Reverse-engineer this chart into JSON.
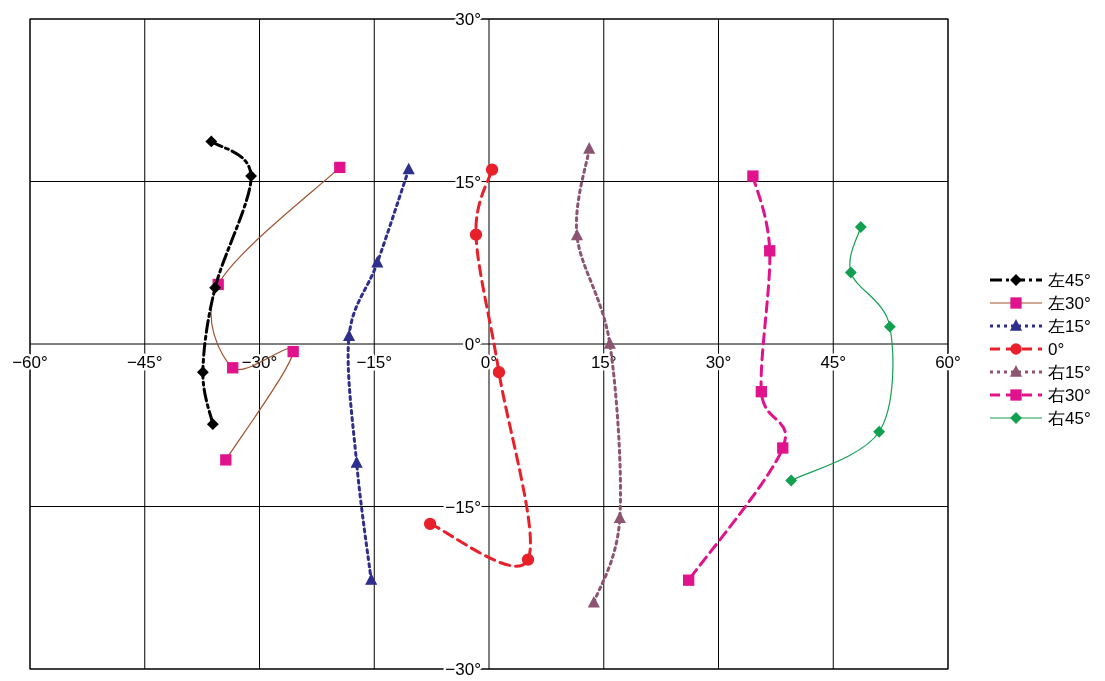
{
  "chart_data": {
    "type": "line",
    "xlim": [
      -60,
      60
    ],
    "ylim": [
      -30,
      30
    ],
    "xticks": [
      {
        "value": -60,
        "label": "−60°"
      },
      {
        "value": -45,
        "label": "−45°"
      },
      {
        "value": -30,
        "label": "−30°"
      },
      {
        "value": -15,
        "label": "−15°"
      },
      {
        "value": 0,
        "label": "0°"
      },
      {
        "value": 15,
        "label": "15°"
      },
      {
        "value": 30,
        "label": "30°"
      },
      {
        "value": 45,
        "label": "45°"
      },
      {
        "value": 60,
        "label": "60°"
      }
    ],
    "yticks": [
      {
        "value": -30,
        "label": "−30°"
      },
      {
        "value": -15,
        "label": "−15°"
      },
      {
        "value": 0,
        "label": "0°"
      },
      {
        "value": 15,
        "label": "15°"
      },
      {
        "value": 30,
        "label": "30°"
      }
    ],
    "grid": true,
    "legend": "right",
    "series": [
      {
        "name": "左45°",
        "color": "#000000",
        "line_style": "dashdot",
        "marker": "diamond",
        "x": [
          -36.3,
          -31.1,
          -35.8,
          -37.4,
          -36.1
        ],
        "values": [
          18.7,
          15.5,
          5.2,
          -2.6,
          -7.4
        ]
      },
      {
        "name": "左30°",
        "color": "#a0522d",
        "colors": [
          "#e0138c",
          "#e0138c",
          "#e0138c",
          "#e0138c",
          "#e0138c"
        ],
        "line_style": "solid",
        "marker": "square",
        "x": [
          -34.4,
          -25.6,
          -33.5,
          -35.4,
          -19.5
        ],
        "values": [
          -10.7,
          -0.7,
          -2.2,
          5.5,
          16.3
        ]
      },
      {
        "name": "左15°",
        "color": "#2e2e8c",
        "line_style": "dotted",
        "marker": "triangle",
        "x": [
          -10.5,
          -14.6,
          -18.3,
          -17.3,
          -15.4
        ],
        "values": [
          16.1,
          7.5,
          0.7,
          -11.0,
          -21.8
        ]
      },
      {
        "name": "0°",
        "color": "#e8202a",
        "line_style": "dashed",
        "marker": "circle",
        "x": [
          -7.7,
          5.1,
          1.3,
          -1.7,
          0.4
        ],
        "values": [
          -16.6,
          -19.9,
          -2.6,
          10.1,
          16.1
        ]
      },
      {
        "name": "右15°",
        "color": "#8c5470",
        "line_style": "dotted",
        "marker": "triangle",
        "x": [
          13.1,
          11.5,
          15.8,
          17.1,
          13.7
        ],
        "values": [
          18.0,
          10.0,
          0.0,
          -16.1,
          -23.9
        ]
      },
      {
        "name": "右30°",
        "color": "#e0138c",
        "line_style": "dashed",
        "marker": "square",
        "x": [
          34.5,
          36.7,
          35.6,
          38.4,
          26.1
        ],
        "values": [
          15.5,
          8.6,
          -4.4,
          -9.6,
          -21.8
        ]
      },
      {
        "name": "右45°",
        "color": "#12a050",
        "line_style": "solid",
        "marker": "diamond",
        "x": [
          48.6,
          47.3,
          52.4,
          51.0,
          39.5
        ],
        "values": [
          10.8,
          6.6,
          1.6,
          -8.1,
          -12.6
        ]
      }
    ]
  }
}
